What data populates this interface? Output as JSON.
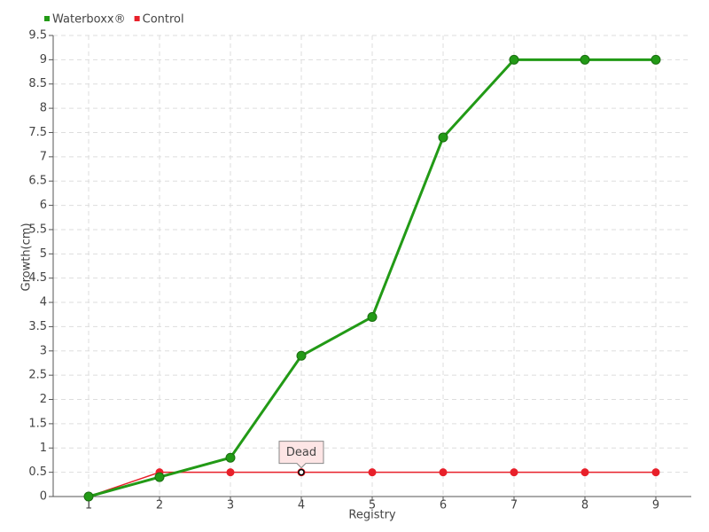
{
  "chart_data": {
    "type": "line",
    "x_label": "Registry",
    "y_label": "Growth(cm)",
    "x": [
      1,
      2,
      3,
      4,
      5,
      6,
      7,
      8,
      9
    ],
    "series": [
      {
        "name": "Waterboxx®",
        "color": "#229a16",
        "values": [
          0,
          0.4,
          0.8,
          2.9,
          3.7,
          7.4,
          9,
          9,
          9
        ]
      },
      {
        "name": "Control",
        "color": "#e8202a",
        "values": [
          0,
          0.5,
          0.5,
          0.5,
          0.5,
          0.5,
          0.5,
          0.5,
          0.5
        ]
      }
    ],
    "annotations": [
      {
        "text": "Dead",
        "x": 4,
        "y": 0.5
      }
    ],
    "xlim": [
      0.5,
      9.5
    ],
    "xticks": [
      1,
      2,
      3,
      4,
      5,
      6,
      7,
      8,
      9
    ],
    "ylim": [
      0,
      9.5
    ],
    "yticks": [
      0,
      0.5,
      1,
      1.5,
      2,
      2.5,
      3,
      3.5,
      4,
      4.5,
      5,
      5.5,
      6,
      6.5,
      7,
      7.5,
      8,
      8.5,
      9,
      9.5
    ],
    "grid": true,
    "legend": "top-left"
  }
}
